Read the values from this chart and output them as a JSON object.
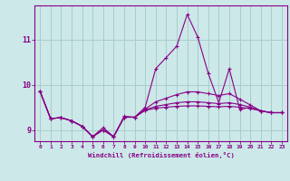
{
  "xlabel": "Windchill (Refroidissement éolien,°C)",
  "background_color": "#cce8e8",
  "grid_color": "#aacccc",
  "line_color": "#880088",
  "x": [
    0,
    1,
    2,
    3,
    4,
    5,
    6,
    7,
    8,
    9,
    10,
    11,
    12,
    13,
    14,
    15,
    16,
    17,
    18,
    19,
    20,
    21,
    22,
    23
  ],
  "line1": [
    9.85,
    9.25,
    9.27,
    9.2,
    9.08,
    8.85,
    9.05,
    8.85,
    9.3,
    9.28,
    9.5,
    10.35,
    10.6,
    10.85,
    11.55,
    11.05,
    10.25,
    9.6,
    10.35,
    9.45,
    9.5,
    9.42,
    9.38,
    9.38
  ],
  "line2": [
    9.85,
    9.25,
    9.27,
    9.2,
    9.08,
    8.85,
    9.0,
    8.85,
    9.28,
    9.28,
    9.46,
    9.62,
    9.7,
    9.78,
    9.84,
    9.84,
    9.8,
    9.76,
    9.8,
    9.68,
    9.55,
    9.42,
    9.38,
    9.38
  ],
  "line3": [
    9.85,
    9.25,
    9.27,
    9.2,
    9.08,
    8.85,
    9.0,
    8.85,
    9.28,
    9.28,
    9.44,
    9.52,
    9.56,
    9.6,
    9.62,
    9.62,
    9.6,
    9.58,
    9.6,
    9.56,
    9.5,
    9.42,
    9.38,
    9.38
  ],
  "line4": [
    9.85,
    9.25,
    9.27,
    9.2,
    9.08,
    8.85,
    9.0,
    8.85,
    9.28,
    9.28,
    9.43,
    9.48,
    9.5,
    9.52,
    9.53,
    9.53,
    9.52,
    9.51,
    9.52,
    9.5,
    9.47,
    9.42,
    9.38,
    9.38
  ],
  "ylim": [
    8.75,
    11.75
  ],
  "yticks": [
    9,
    10,
    11
  ],
  "xticks": [
    0,
    1,
    2,
    3,
    4,
    5,
    6,
    7,
    8,
    9,
    10,
    11,
    12,
    13,
    14,
    15,
    16,
    17,
    18,
    19,
    20,
    21,
    22,
    23
  ]
}
